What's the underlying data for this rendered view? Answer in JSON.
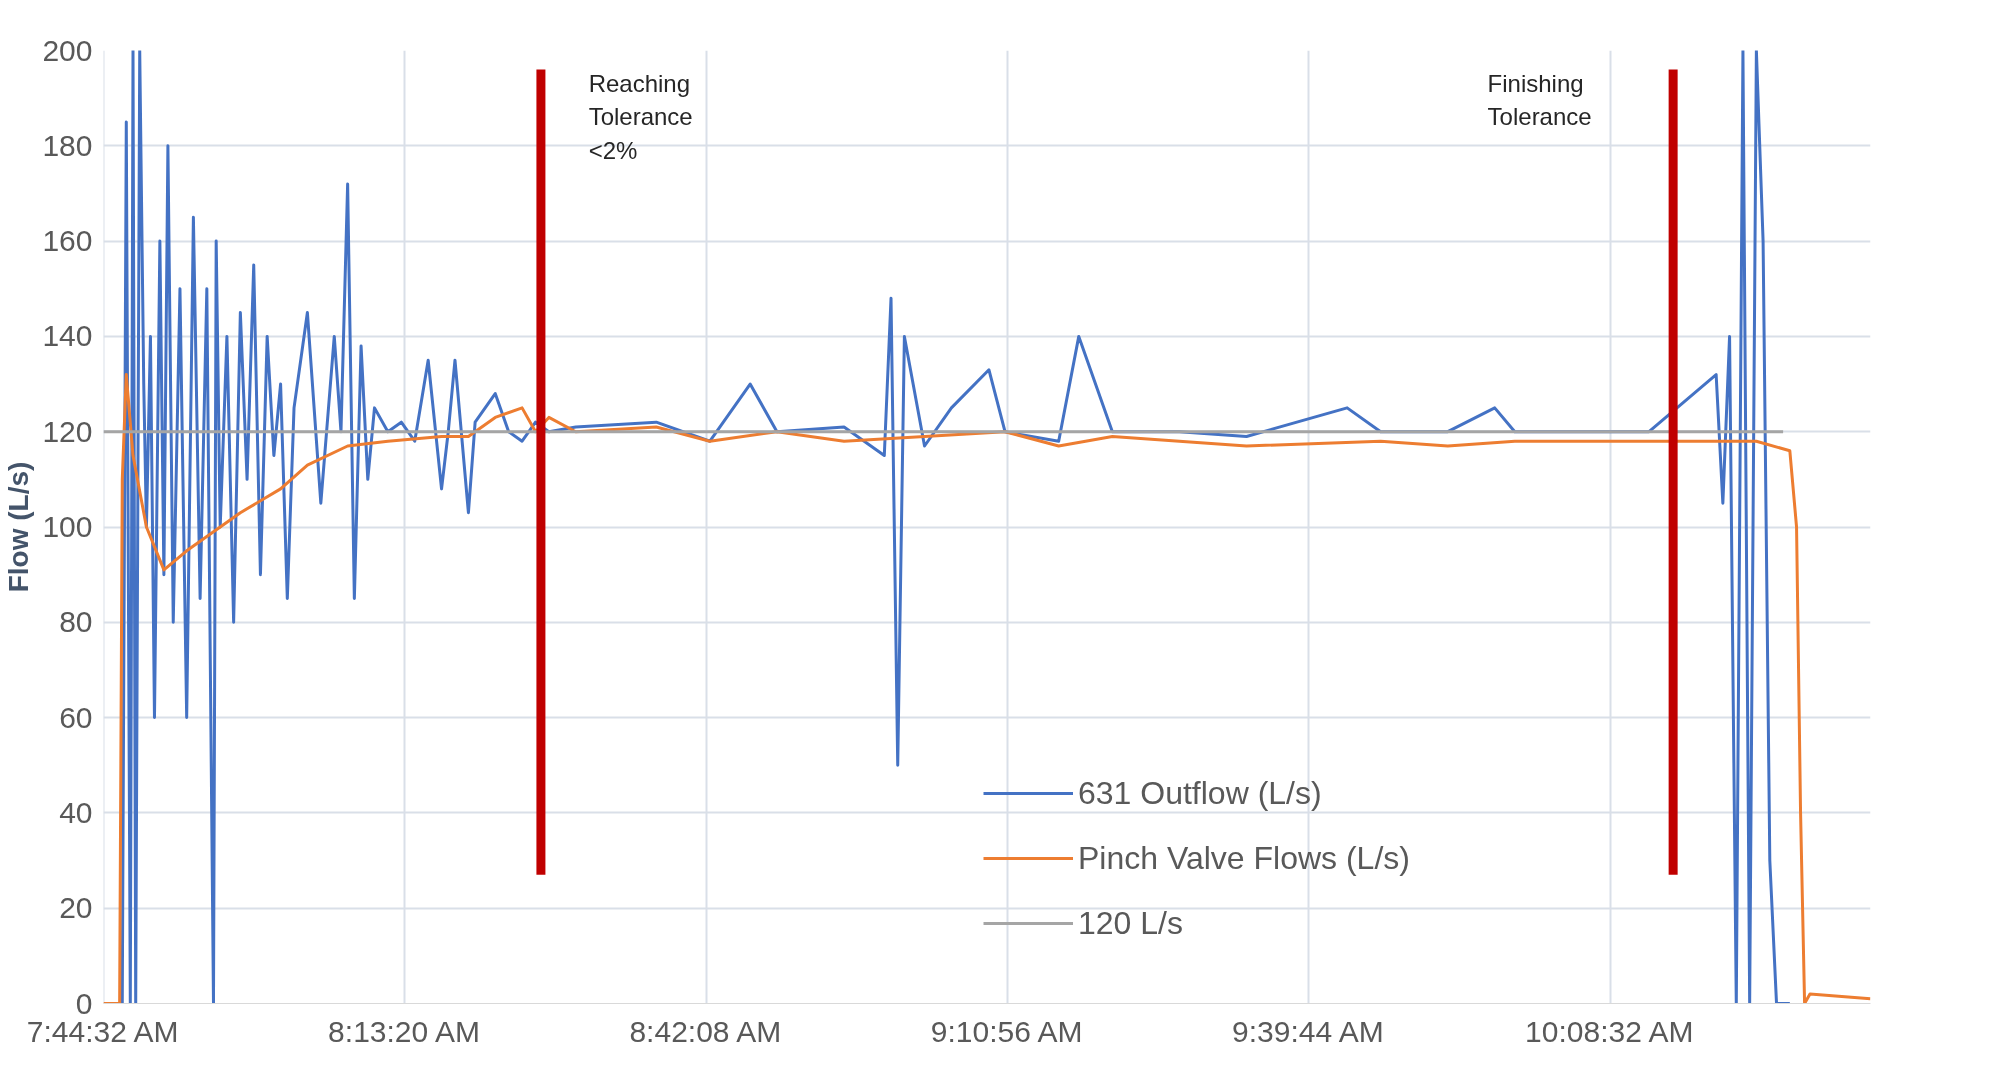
{
  "chart_data": {
    "type": "line",
    "ylabel": "Flow (L/s)",
    "xlim": [
      7.7422,
      10.557
    ],
    "ylim": [
      0,
      200
    ],
    "xticks": [
      {
        "value": 7.742222,
        "label": "7:44:32 AM"
      },
      {
        "value": 8.222222,
        "label": "8:13:20 AM"
      },
      {
        "value": 8.702222,
        "label": "8:42:08 AM"
      },
      {
        "value": 9.182222,
        "label": "9:10:56 AM"
      },
      {
        "value": 9.662222,
        "label": "9:39:44 AM"
      },
      {
        "value": 10.142222,
        "label": "10:08:32 AM"
      }
    ],
    "yticks": [
      0,
      20,
      40,
      60,
      80,
      100,
      120,
      140,
      160,
      180,
      200
    ],
    "grid": true,
    "legend": "bottom",
    "line_style": "solid",
    "marker": "none",
    "annotations": [
      "Reaching\nTolerance\n<2%",
      "Finishing\nTolerance"
    ],
    "series": [
      {
        "name": "631 Outflow (L/s)",
        "color": "#4472c4",
        "x": [
          7.7721,
          7.7785,
          7.7849,
          7.7892,
          7.7935,
          7.7999,
          7.8063,
          7.8106,
          7.817,
          7.8234,
          7.832,
          7.8384,
          7.8448,
          7.8533,
          7.864,
          7.8747,
          7.8854,
          7.8961,
          7.9068,
          7.9174,
          7.9217,
          7.9281,
          7.9388,
          7.9495,
          7.9602,
          7.9709,
          7.9815,
          7.9922,
          8.0029,
          8.0136,
          8.0243,
          8.035,
          8.0457,
          8.067,
          8.0884,
          8.1098,
          8.1205,
          8.1311,
          8.1418,
          8.1525,
          8.1632,
          8.1739,
          8.1952,
          8.2166,
          8.238,
          8.2594,
          8.2807,
          8.2914,
          8.3021,
          8.3235,
          8.3342,
          8.3662,
          8.3876,
          8.409,
          8.4304,
          8.4517,
          8.4945,
          8.6227,
          8.7082,
          8.7723,
          8.815,
          8.9219,
          8.986,
          8.9967,
          9.0074,
          9.018,
          9.0501,
          9.0929,
          9.1527,
          9.1783,
          9.2638,
          9.2958,
          9.3493,
          9.4561,
          9.563,
          9.7233,
          9.7767,
          9.8836,
          9.9584,
          9.9904,
          10.2042,
          10.3111,
          10.3218,
          10.3325,
          10.3432,
          10.3538,
          10.3645,
          10.3752,
          10.3859,
          10.3966,
          10.4073,
          10.4178,
          10.4285
        ],
        "values": [
          0,
          185,
          0,
          200,
          0,
          200,
          130,
          100,
          140,
          60,
          160,
          90,
          180,
          80,
          150,
          60,
          165,
          85,
          150,
          0,
          160,
          100,
          140,
          80,
          145,
          110,
          155,
          90,
          140,
          115,
          130,
          85,
          125,
          145,
          105,
          140,
          120,
          172,
          85,
          138,
          110,
          125,
          120,
          122,
          118,
          135,
          108,
          120,
          135,
          103,
          122,
          128,
          120,
          118,
          122,
          120,
          121,
          122,
          118,
          130,
          120,
          121,
          115,
          148,
          50,
          140,
          117,
          125,
          133,
          120,
          118,
          140,
          120,
          120,
          119,
          125,
          120,
          120,
          125,
          120,
          120,
          132,
          105,
          140,
          0,
          200,
          0,
          200,
          160,
          30,
          0,
          0,
          0
        ]
      },
      {
        "name": "Pinch Valve Flows (L/s)",
        "color": "#ed7d31",
        "x": [
          7.7422,
          7.7679,
          7.7721,
          7.7785,
          7.7892,
          7.8106,
          7.8384,
          7.8747,
          7.9602,
          8.0243,
          8.067,
          8.1311,
          8.1952,
          8.2807,
          8.3235,
          8.3662,
          8.409,
          8.4304,
          8.4517,
          8.4945,
          8.6227,
          8.7082,
          8.815,
          8.9219,
          9.0501,
          9.1783,
          9.2638,
          9.3493,
          9.4561,
          9.563,
          9.7767,
          9.8836,
          9.9904,
          10.2042,
          10.3752,
          10.4285,
          10.4392,
          10.4456,
          10.452,
          10.4606,
          10.5568
        ],
        "values": [
          0,
          0,
          110,
          132,
          115,
          100,
          91,
          95,
          103,
          108,
          113,
          117,
          118,
          119,
          119,
          123,
          125,
          120,
          123,
          120,
          121,
          118,
          120,
          118,
          119,
          120,
          117,
          119,
          118,
          117,
          118,
          117,
          118,
          118,
          118,
          116,
          100,
          40,
          0,
          2,
          1
        ]
      },
      {
        "name": "120 L/s",
        "color": "#a5a5a5",
        "x": [
          7.7422,
          10.4178
        ],
        "values": [
          120,
          120
        ]
      },
      {
        "color": "#c00000",
        "x": [
          8.439,
          8.439
        ],
        "values": [
          27,
          196
        ]
      },
      {
        "color": "#c00000",
        "x": [
          10.2426,
          10.2426
        ],
        "values": [
          27,
          196
        ]
      }
    ]
  }
}
